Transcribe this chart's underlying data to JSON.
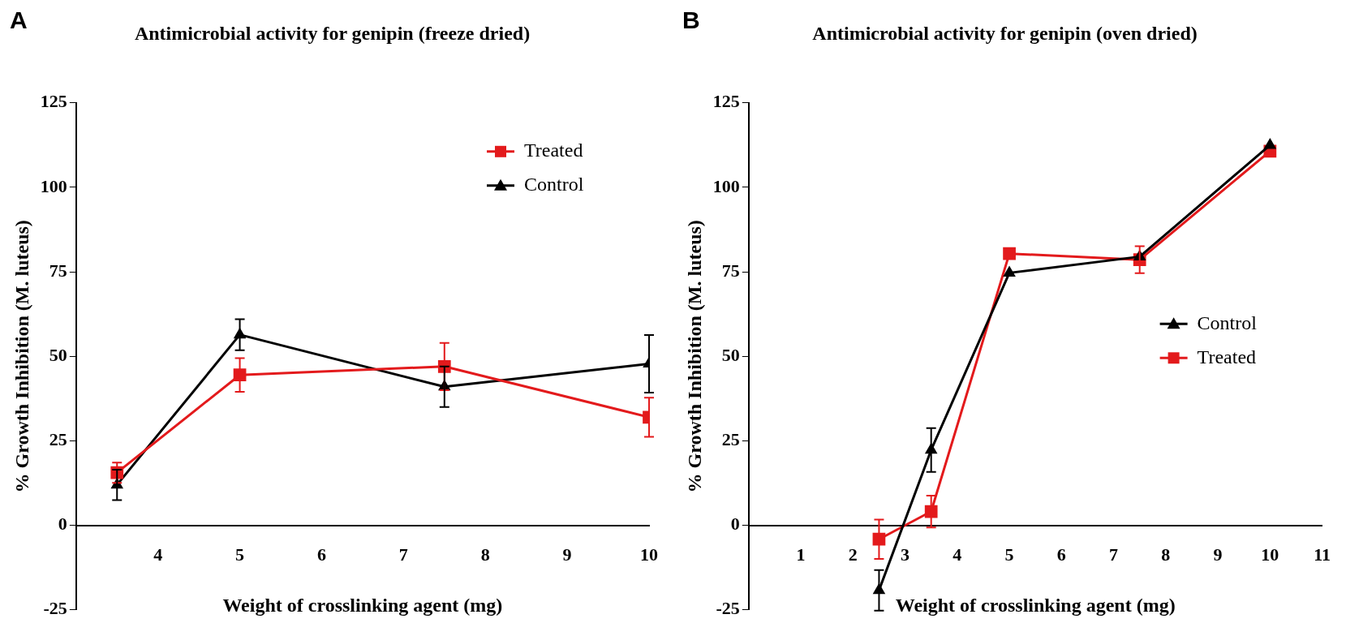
{
  "chart_data": [
    {
      "type": "line",
      "title": "Antimicrobial activity for genipin (freeze dried)",
      "annotations": [
        "A"
      ],
      "xlabel": "Weight of crosslinking agent (mg)",
      "ylabel": "% Growth Inhibition (M. luteus)",
      "x": [
        3.5,
        5,
        7.5,
        10
      ],
      "xlim": [
        3,
        10
      ],
      "xticks": [
        4,
        5,
        6,
        7,
        8,
        9,
        10
      ],
      "ylim": [
        -25,
        125
      ],
      "yticks": [
        -25,
        0,
        25,
        50,
        75,
        100,
        125
      ],
      "grid": false,
      "legend": "top right",
      "series": [
        {
          "name": "Treated",
          "color": "#e31a1c",
          "marker": "square",
          "values": [
            15.6,
            44.5,
            47,
            32
          ],
          "errors": [
            3,
            5,
            7,
            5.8
          ]
        },
        {
          "name": "Control",
          "color": "#000000",
          "marker": "triangle",
          "values": [
            12,
            56.4,
            41,
            47.8
          ],
          "errors": [
            4.5,
            4.6,
            6,
            8.5
          ]
        }
      ]
    },
    {
      "type": "line",
      "title": "Antimicrobial activity for genipin (oven dried)",
      "annotations": [
        "B"
      ],
      "xlabel": "Weight of crosslinking agent (mg)",
      "ylabel": "% Growth Inhibition (M. luteus)",
      "x": [
        2.5,
        3.5,
        5,
        7.5,
        10
      ],
      "xlim": [
        0,
        11
      ],
      "xticks": [
        1,
        2,
        3,
        4,
        5,
        6,
        7,
        8,
        9,
        10,
        11
      ],
      "ylim": [
        -25,
        125
      ],
      "yticks": [
        -25,
        0,
        25,
        50,
        75,
        100,
        125
      ],
      "grid": false,
      "legend": "right",
      "series": [
        {
          "name": "Control",
          "color": "#000000",
          "marker": "triangle",
          "values": [
            -19.2,
            22.3,
            74.7,
            79.5,
            112.5
          ],
          "errors": [
            6,
            6.5,
            null,
            null,
            null
          ]
        },
        {
          "name": "Treated",
          "color": "#e31a1c",
          "marker": "square",
          "values": [
            -4.1,
            4.1,
            80.4,
            78.6,
            110.7
          ],
          "errors": [
            5.8,
            4.7,
            null,
            4,
            null
          ]
        }
      ]
    }
  ]
}
